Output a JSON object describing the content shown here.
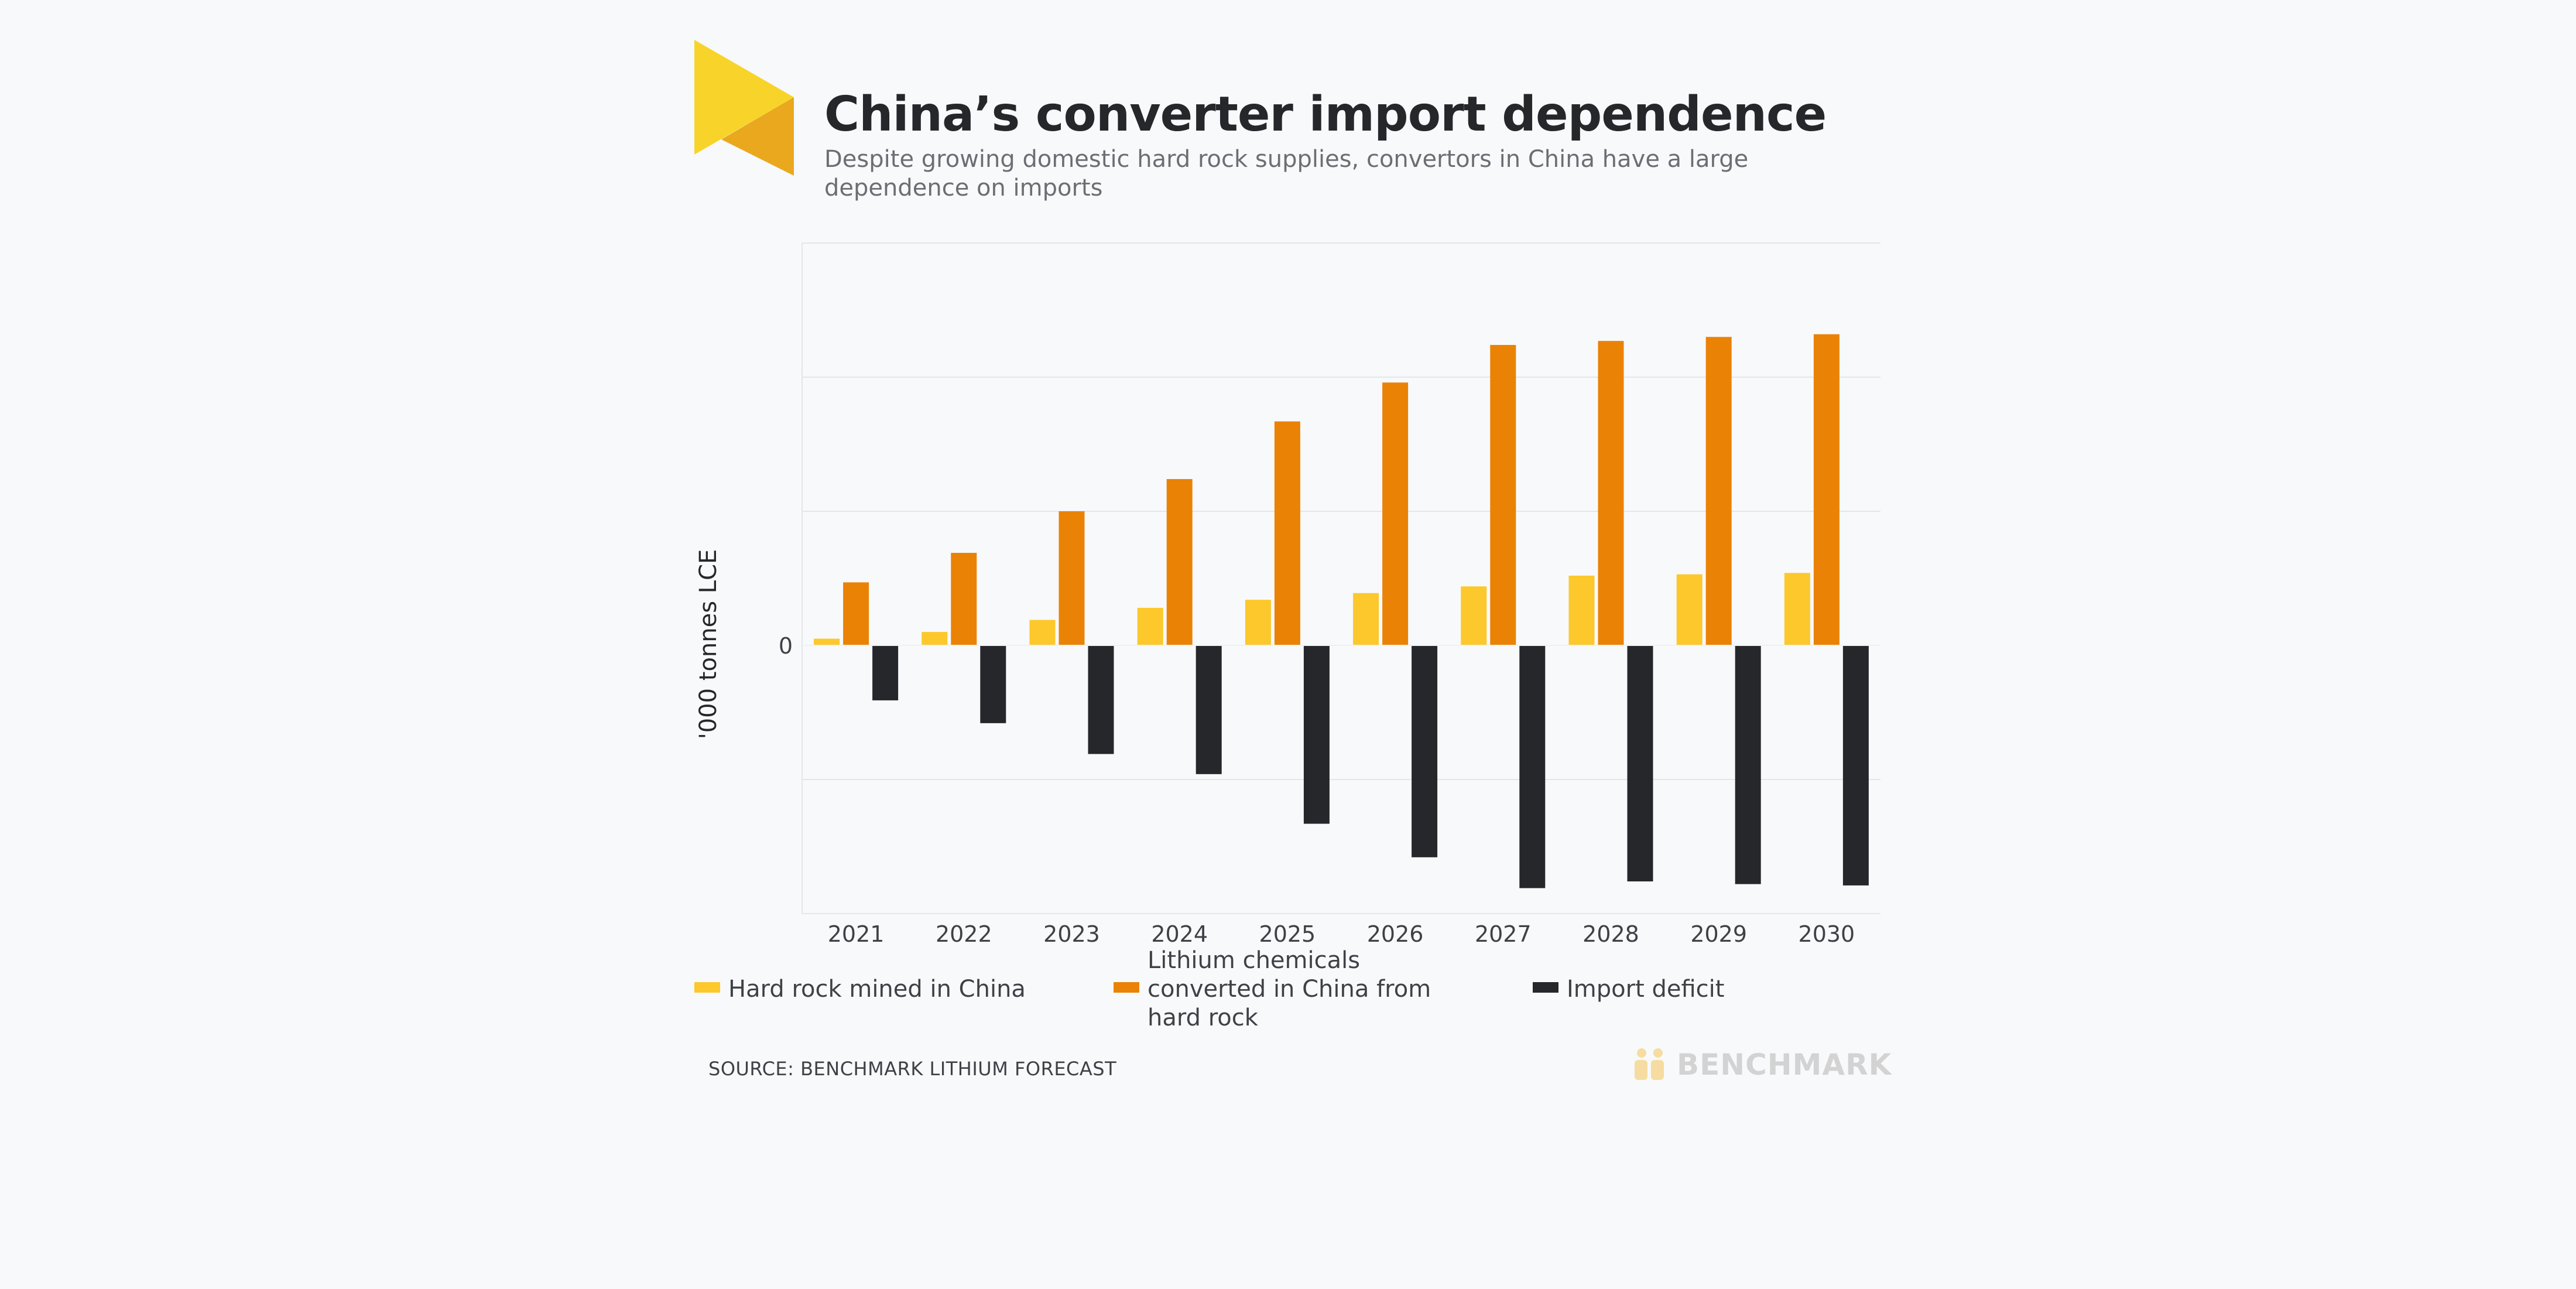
{
  "header": {
    "title": "China’s converter import dependence",
    "subtitle": "Despite growing domestic hard rock supplies, convertors in China have a large dependence on imports"
  },
  "chart_data": {
    "type": "bar",
    "categories": [
      "2021",
      "2022",
      "2023",
      "2024",
      "2025",
      "2026",
      "2027",
      "2028",
      "2029",
      "2030"
    ],
    "series": [
      {
        "name": "Hard rock mined in China",
        "color": "#fcc82c",
        "values": [
          5,
          10,
          19,
          28,
          34,
          39,
          44,
          52,
          53,
          54
        ]
      },
      {
        "name": "Lithium chemicals converted in China from hard rock",
        "color": "#ea8205",
        "values": [
          47,
          69,
          100,
          124,
          167,
          196,
          224,
          227,
          230,
          232
        ]
      },
      {
        "name": "Import deficit",
        "color": "#25272b",
        "values": [
          -41,
          -58,
          -81,
          -96,
          -133,
          -158,
          -181,
          -176,
          -178,
          -179
        ]
      }
    ],
    "ylabel": "'000 tonnes LCE",
    "ylim": [
      -200,
      300
    ],
    "y_tick_labels": [
      "0"
    ],
    "grid": true,
    "legend_position": "bottom"
  },
  "legend": [
    {
      "label": "Hard rock mined in China",
      "color": "#fcc82c"
    },
    {
      "label": "Lithium chemicals converted in China from hard rock",
      "color": "#ea8205"
    },
    {
      "label": "Import deficit",
      "color": "#25272b"
    }
  ],
  "footer": {
    "source": "SOURCE: BENCHMARK LITHIUM FORECAST",
    "brand": "BENCHMARK"
  }
}
